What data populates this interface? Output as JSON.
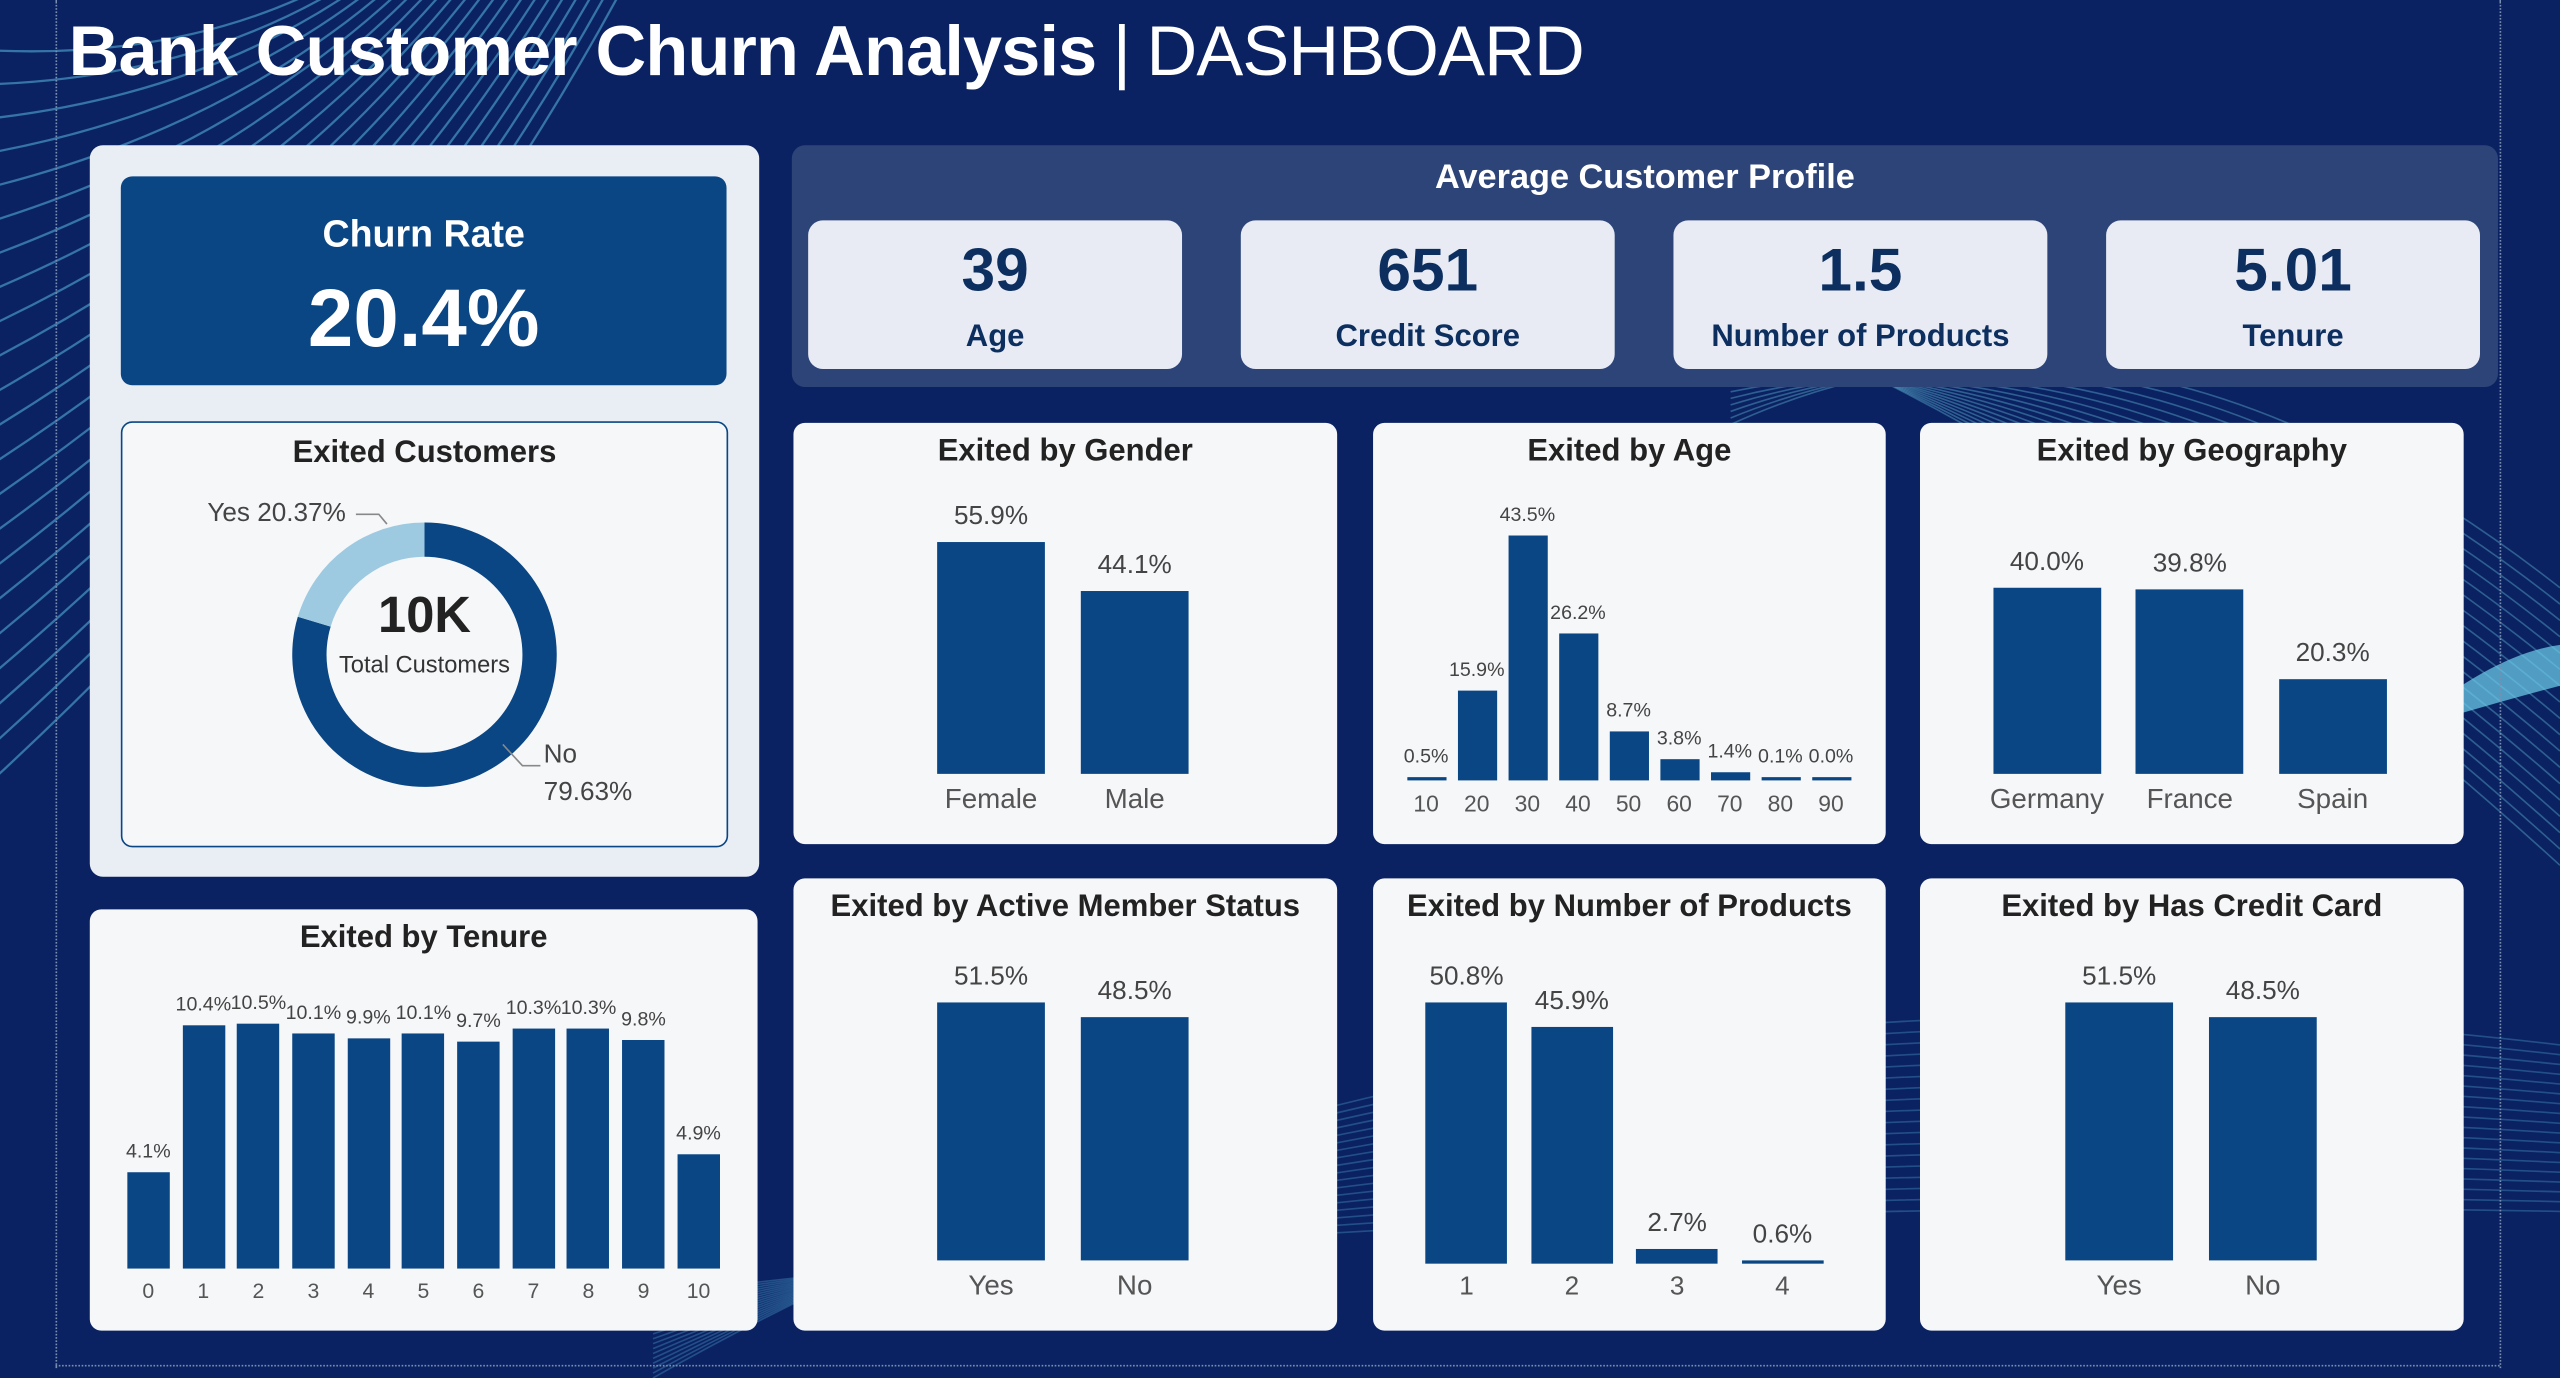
{
  "header": {
    "title_bold": "Bank Customer Churn Analysis",
    "separator": "|",
    "title_light": "DASHBOARD"
  },
  "colors": {
    "background": "#0b2262",
    "bar": "#0a4684",
    "donut_no": "#0a4684",
    "donut_yes": "#9ecae1",
    "card": "#f6f7f9"
  },
  "churn_rate": {
    "label": "Churn Rate",
    "value": "20.4%"
  },
  "exited_customers": {
    "title": "Exited Customers",
    "center_value": "10K",
    "center_label": "Total Customers",
    "yes_label": "Yes 20.37%",
    "no_label": "No",
    "no_value": "79.63%",
    "yes_pct": 20.37,
    "no_pct": 79.63
  },
  "profile": {
    "title": "Average Customer Profile",
    "kpis": [
      {
        "value": "39",
        "label": "Age"
      },
      {
        "value": "651",
        "label": "Credit Score"
      },
      {
        "value": "1.5",
        "label": "Number of Products"
      },
      {
        "value": "5.01",
        "label": "Tenure"
      }
    ]
  },
  "chart_data": [
    {
      "id": "gender",
      "type": "bar",
      "title": "Exited by Gender",
      "categories": [
        "Female",
        "Male"
      ],
      "values": [
        55.9,
        44.1
      ],
      "labels": [
        "55.9%",
        "44.1%"
      ]
    },
    {
      "id": "age",
      "type": "bar",
      "title": "Exited by Age",
      "categories": [
        "10",
        "20",
        "30",
        "40",
        "50",
        "60",
        "70",
        "80",
        "90"
      ],
      "values": [
        0.5,
        15.9,
        43.5,
        26.2,
        8.7,
        3.8,
        1.4,
        0.1,
        0.0
      ],
      "labels": [
        "0.5%",
        "15.9%",
        "43.5%",
        "26.2%",
        "8.7%",
        "3.8%",
        "1.4%",
        "0.1%",
        "0.0%"
      ]
    },
    {
      "id": "geo",
      "type": "bar",
      "title": "Exited by Geography",
      "categories": [
        "Germany",
        "France",
        "Spain"
      ],
      "values": [
        40.0,
        39.8,
        20.3
      ],
      "labels": [
        "40.0%",
        "39.8%",
        "20.3%"
      ]
    },
    {
      "id": "tenure",
      "type": "bar",
      "title": "Exited by Tenure",
      "categories": [
        "0",
        "1",
        "2",
        "3",
        "4",
        "5",
        "6",
        "7",
        "8",
        "9",
        "10"
      ],
      "values": [
        4.1,
        10.4,
        10.5,
        10.1,
        9.9,
        10.1,
        9.7,
        10.3,
        10.3,
        9.8,
        4.9
      ],
      "labels": [
        "4.1%",
        "10.4%",
        "10.5%",
        "10.1%",
        "9.9%",
        "10.1%",
        "9.7%",
        "10.3%",
        "10.3%",
        "9.8%",
        "4.9%"
      ]
    },
    {
      "id": "active",
      "type": "bar",
      "title": "Exited by Active Member Status",
      "categories": [
        "Yes",
        "No"
      ],
      "values": [
        51.5,
        48.5
      ],
      "labels": [
        "51.5%",
        "48.5%"
      ]
    },
    {
      "id": "products",
      "type": "bar",
      "title": "Exited by Number of Products",
      "categories": [
        "1",
        "2",
        "3",
        "4"
      ],
      "values": [
        50.8,
        45.9,
        2.7,
        0.6
      ],
      "labels": [
        "50.8%",
        "45.9%",
        "2.7%",
        "0.6%"
      ]
    },
    {
      "id": "card",
      "type": "bar",
      "title": "Exited by Has Credit Card",
      "categories": [
        "Yes",
        "No"
      ],
      "values": [
        51.5,
        48.5
      ],
      "labels": [
        "51.5%",
        "48.5%"
      ]
    }
  ]
}
